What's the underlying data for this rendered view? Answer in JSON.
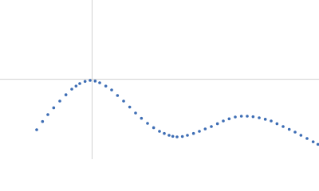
{
  "chart_data": {
    "type": "scatter",
    "color": "#3d6db4",
    "reference_color": "#d0d0d0",
    "xlim": [
      0,
      6
    ],
    "ylim": [
      0,
      2.2
    ],
    "vlines": [
      1.732
    ],
    "hlines": [
      1.104
    ],
    "x": [
      0.69,
      0.8,
      0.9,
      1.01,
      1.125,
      1.24,
      1.35,
      1.43,
      1.5,
      1.6,
      1.695,
      1.79,
      1.875,
      1.99,
      2.1,
      2.21,
      2.325,
      2.44,
      2.55,
      2.66,
      2.775,
      2.89,
      3.0,
      3.09,
      3.18,
      3.25,
      3.33,
      3.43,
      3.525,
      3.64,
      3.75,
      3.86,
      3.975,
      4.09,
      4.2,
      4.31,
      4.425,
      4.54,
      4.65,
      4.76,
      4.875,
      4.99,
      5.1,
      5.21,
      5.325,
      5.44,
      5.55,
      5.66,
      5.775,
      5.89,
      5.98
    ],
    "values": [
      0.407,
      0.52,
      0.616,
      0.71,
      0.803,
      0.89,
      0.968,
      1.01,
      1.045,
      1.075,
      1.089,
      1.08,
      1.056,
      1.01,
      0.957,
      0.88,
      0.803,
      0.72,
      0.638,
      0.565,
      0.495,
      0.435,
      0.385,
      0.355,
      0.33,
      0.316,
      0.308,
      0.313,
      0.33,
      0.355,
      0.385,
      0.418,
      0.451,
      0.49,
      0.528,
      0.558,
      0.583,
      0.594,
      0.594,
      0.587,
      0.572,
      0.552,
      0.528,
      0.49,
      0.451,
      0.412,
      0.374,
      0.33,
      0.286,
      0.24,
      0.205
    ]
  }
}
